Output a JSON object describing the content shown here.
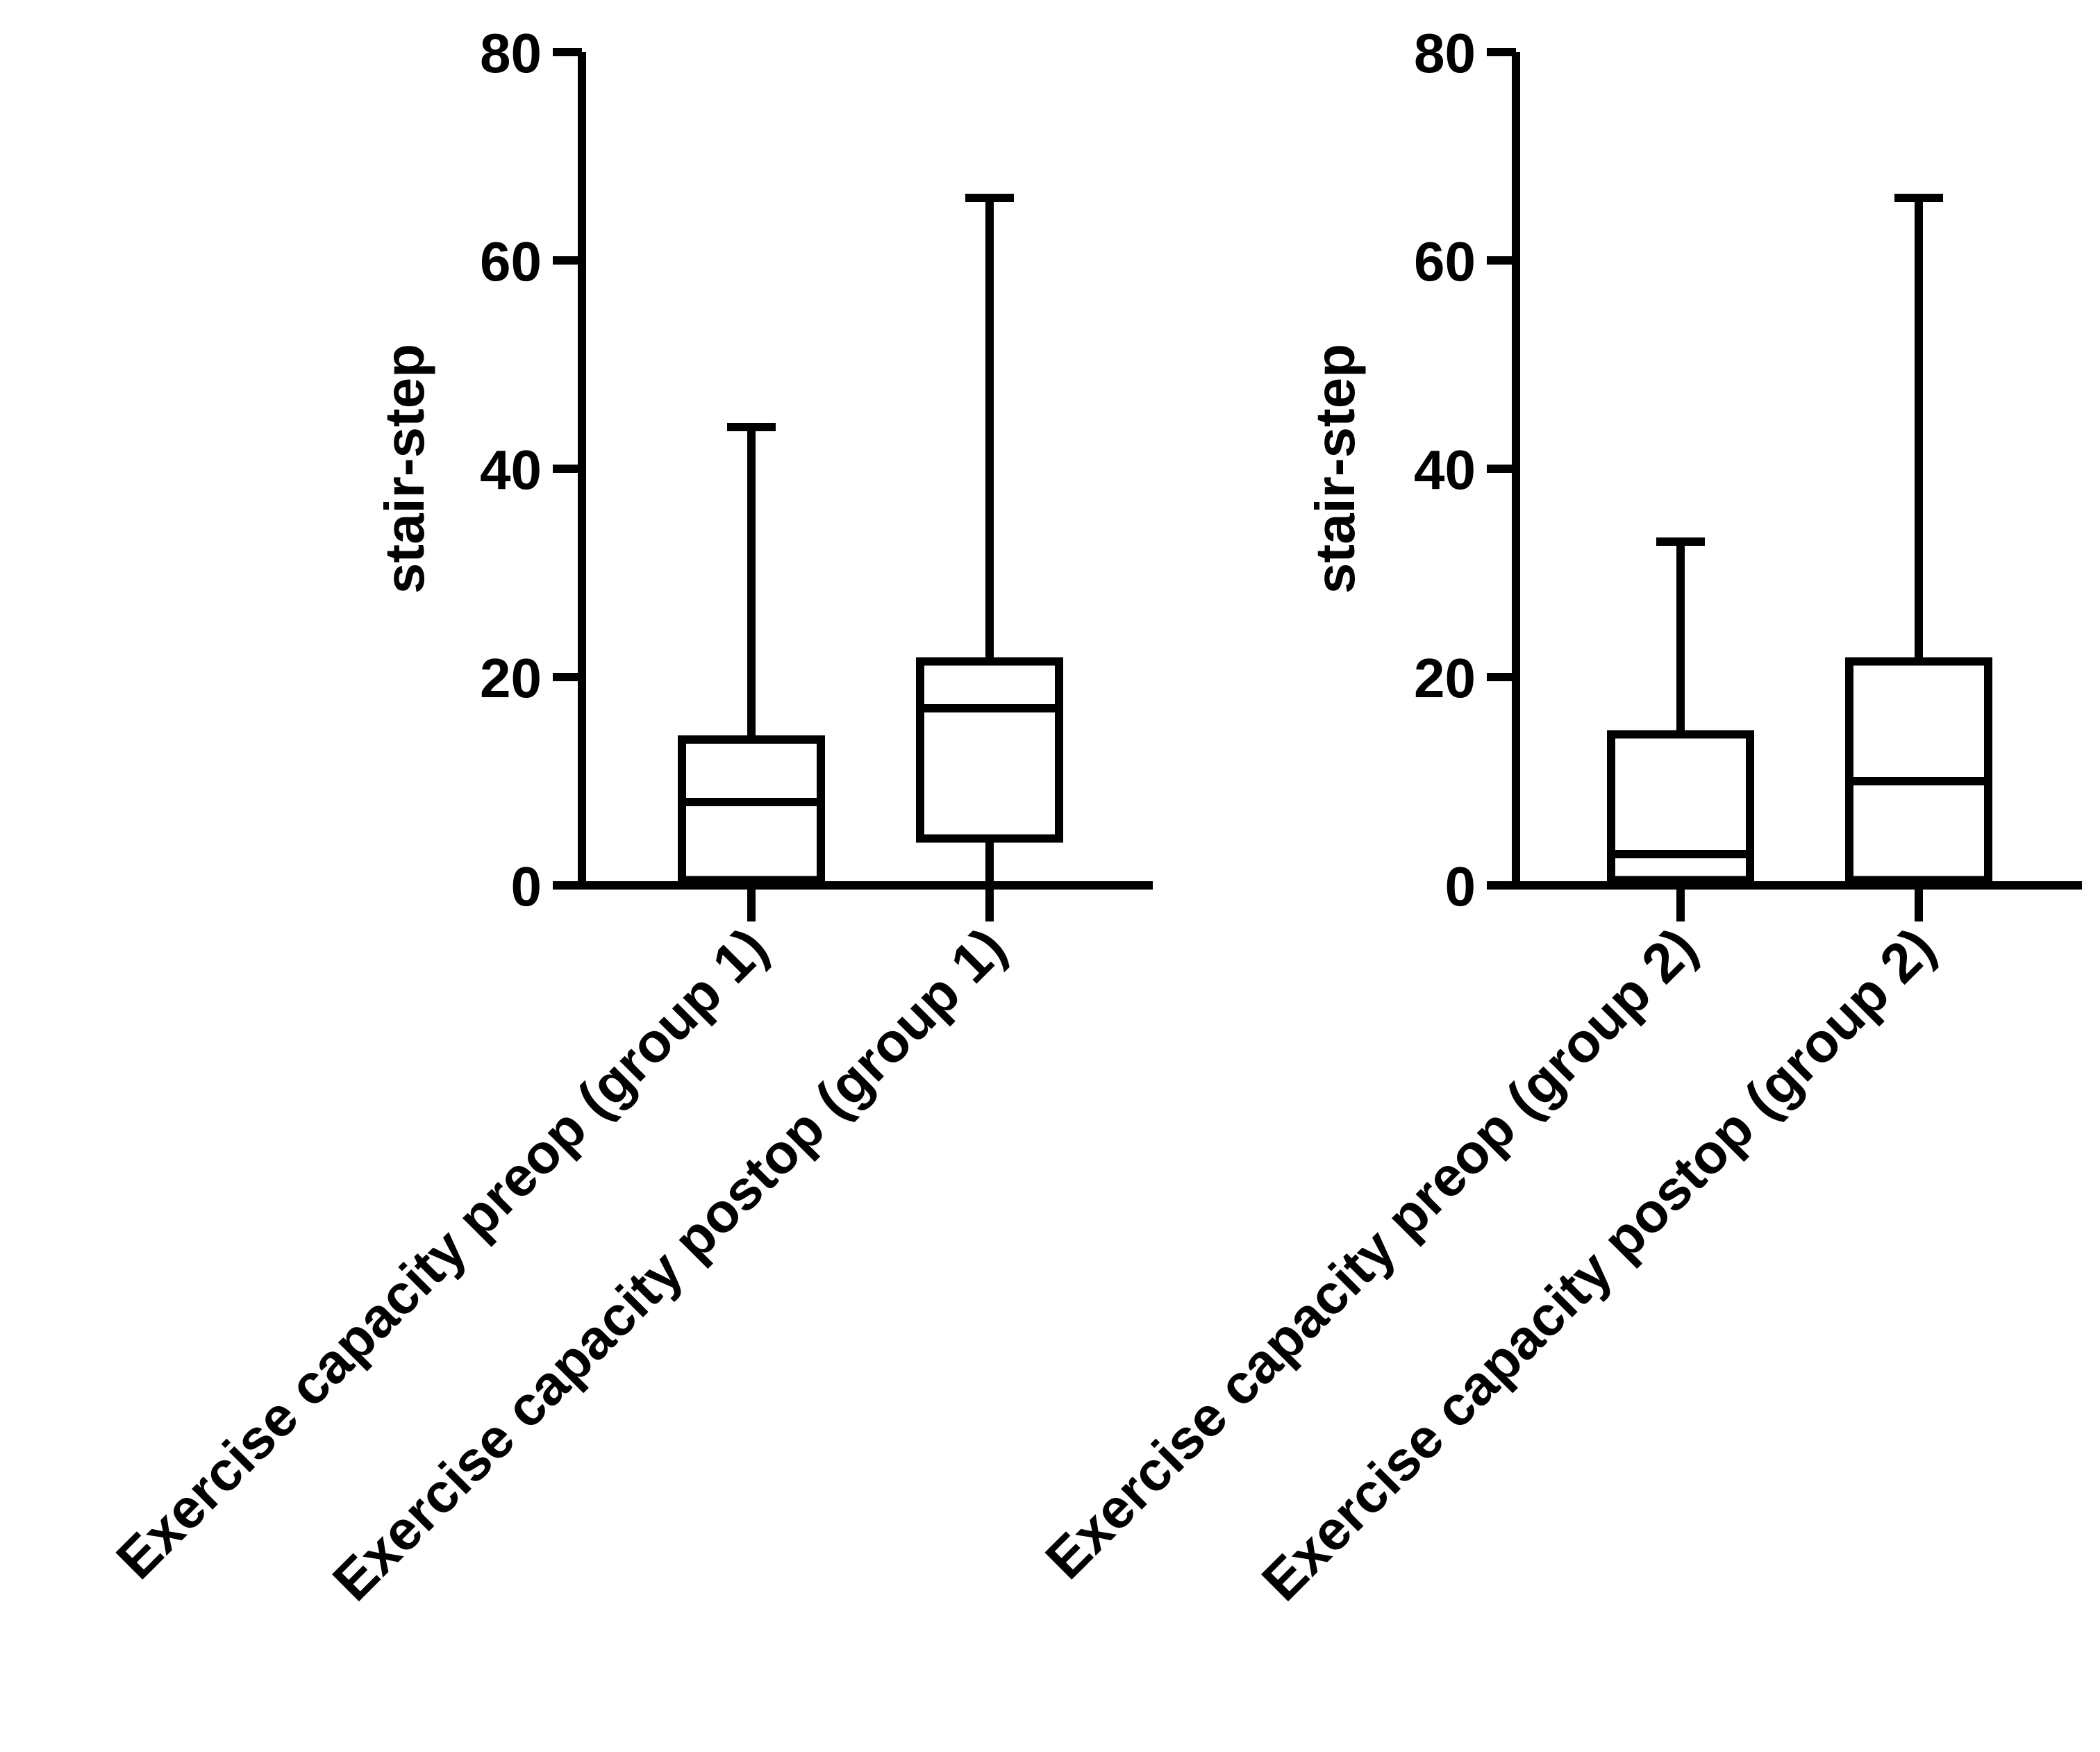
{
  "chart_data": [
    {
      "type": "box",
      "title": "",
      "xlabel": "",
      "ylabel": "stair-step",
      "ylim": [
        0,
        80
      ],
      "yticks": [
        "0",
        "20",
        "40",
        "60",
        "80"
      ],
      "categories": [
        "Exercise capacity preop (group 1)",
        "Exercise capacity postop (group 1)"
      ],
      "series": [
        {
          "name": "Exercise capacity preop (group 1)",
          "min": 0,
          "q1": 0.5,
          "median": 8,
          "q3": 14,
          "max": 44
        },
        {
          "name": "Exercise capacity postop (group 1)",
          "min": 0,
          "q1": 4.5,
          "median": 17,
          "q3": 21.5,
          "max": 66
        }
      ]
    },
    {
      "type": "box",
      "title": "",
      "xlabel": "",
      "ylabel": "stair-step",
      "ylim": [
        0,
        80
      ],
      "yticks": [
        "0",
        "20",
        "40",
        "60",
        "80"
      ],
      "categories": [
        "Exercise capacity preop (group 2)",
        "Exercise capacity postop (group 2)"
      ],
      "series": [
        {
          "name": "Exercise capacity preop (group 2)",
          "min": 0,
          "q1": 0.5,
          "median": 3,
          "q3": 14.5,
          "max": 33
        },
        {
          "name": "Exercise capacity postop (group 2)",
          "min": 0,
          "q1": 0.5,
          "median": 10,
          "q3": 21.5,
          "max": 66
        }
      ]
    }
  ],
  "colors": {
    "stroke": "#000000",
    "background": "#ffffff"
  }
}
